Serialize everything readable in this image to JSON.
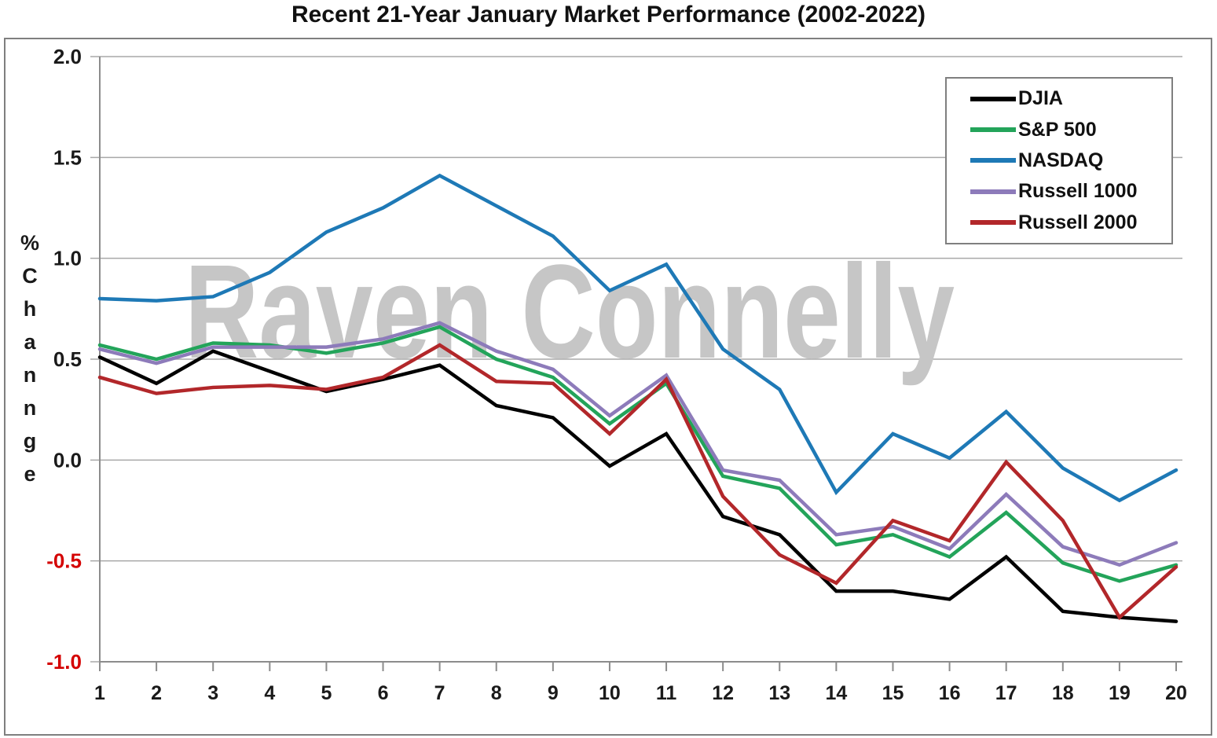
{
  "title": "Recent 21-Year January Market Performance (2002-2022)",
  "watermark": "Raven Connelly",
  "y_axis": {
    "title_letters": [
      "%",
      "C",
      "h",
      "a",
      "n",
      "n",
      "g",
      "e"
    ],
    "ticks": [
      "2.0",
      "1.5",
      "1.0",
      "0.5",
      "0.0",
      "-0.5",
      "-1.0"
    ],
    "positive_label_color": "#1a1a1a",
    "negative_label_color": "#d40000"
  },
  "x_axis": {
    "ticks": [
      "1",
      "2",
      "3",
      "4",
      "5",
      "6",
      "7",
      "8",
      "9",
      "10",
      "11",
      "12",
      "13",
      "14",
      "15",
      "16",
      "17",
      "18",
      "19",
      "20"
    ]
  },
  "colors": {
    "grid": "#a8a8a8",
    "axis": "#8c8c8c",
    "frame": "#7f7f7f",
    "watermark_gray": "#c6c6c6"
  },
  "chart_data": {
    "type": "line",
    "title": "Recent 21-Year January Market Performance (2002-2022)",
    "xlabel": "",
    "ylabel": "% Channge",
    "x": [
      1,
      2,
      3,
      4,
      5,
      6,
      7,
      8,
      9,
      10,
      11,
      12,
      13,
      14,
      15,
      16,
      17,
      18,
      19,
      20
    ],
    "ylim": [
      -1.0,
      2.0
    ],
    "grid": true,
    "legend_position": "top-right",
    "series": [
      {
        "name": "DJIA",
        "color": "#000000",
        "values": [
          0.51,
          0.38,
          0.54,
          0.44,
          0.34,
          0.4,
          0.47,
          0.27,
          0.21,
          -0.03,
          0.13,
          -0.28,
          -0.37,
          -0.65,
          -0.65,
          -0.69,
          -0.48,
          -0.75,
          -0.78,
          -0.8
        ]
      },
      {
        "name": "S&P 500",
        "color": "#23a45a",
        "values": [
          0.57,
          0.5,
          0.58,
          0.57,
          0.53,
          0.58,
          0.66,
          0.5,
          0.41,
          0.18,
          0.38,
          -0.08,
          -0.14,
          -0.42,
          -0.37,
          -0.48,
          -0.26,
          -0.51,
          -0.6,
          -0.52
        ]
      },
      {
        "name": "NASDAQ",
        "color": "#1e79b6",
        "values": [
          0.8,
          0.79,
          0.81,
          0.93,
          1.13,
          1.25,
          1.41,
          1.26,
          1.11,
          0.84,
          0.97,
          0.55,
          0.35,
          -0.16,
          0.13,
          0.01,
          0.24,
          -0.04,
          -0.2,
          -0.05
        ]
      },
      {
        "name": "Russell 1000",
        "color": "#8d7bba",
        "values": [
          0.55,
          0.48,
          0.56,
          0.56,
          0.56,
          0.6,
          0.68,
          0.54,
          0.45,
          0.22,
          0.42,
          -0.05,
          -0.1,
          -0.37,
          -0.33,
          -0.44,
          -0.17,
          -0.43,
          -0.52,
          -0.41
        ]
      },
      {
        "name": "Russell 2000",
        "color": "#b2272a",
        "values": [
          0.41,
          0.33,
          0.36,
          0.37,
          0.35,
          0.41,
          0.57,
          0.39,
          0.38,
          0.13,
          0.4,
          -0.18,
          -0.47,
          -0.61,
          -0.3,
          -0.4,
          -0.01,
          -0.3,
          -0.78,
          -0.53
        ]
      }
    ]
  }
}
